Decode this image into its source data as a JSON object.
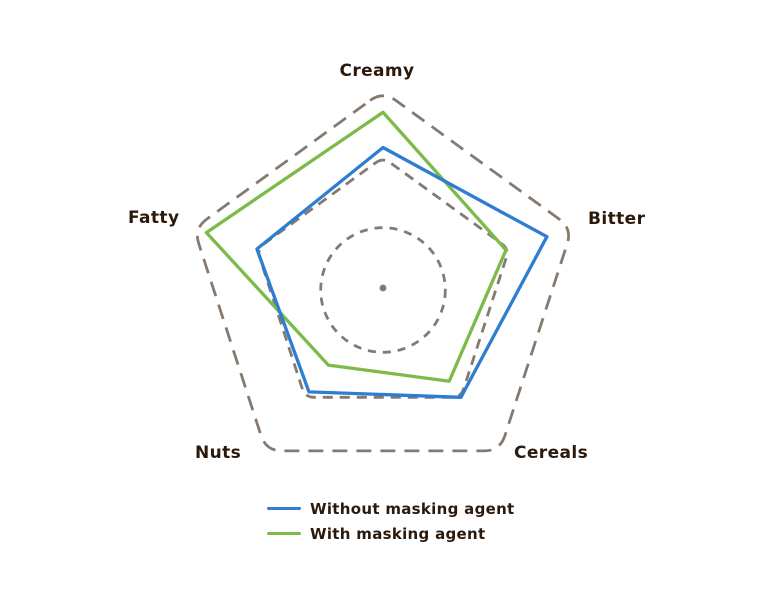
{
  "chart_data": {
    "type": "radar",
    "title": "",
    "categories": [
      "Creamy",
      "Bitter",
      "Cereals",
      "Nuts",
      "Fatty"
    ],
    "series": [
      {
        "name": "Without masking agent",
        "color": "#2e7dd1",
        "values": [
          2.15,
          2.6,
          2.0,
          1.9,
          2.0
        ]
      },
      {
        "name": "With masking agent",
        "color": "#7cba49",
        "values": [
          2.68,
          1.95,
          1.7,
          1.4,
          2.8
        ]
      }
    ],
    "scale": {
      "min": 0,
      "max": 3,
      "rings": [
        1,
        2,
        3
      ]
    },
    "grid": {
      "color": "#867a70",
      "style": "dashed",
      "ring_shapes": [
        "circle",
        "pentagon",
        "pentagon"
      ],
      "center_dot": true
    },
    "legend": {
      "position": "bottom-center"
    },
    "text_color": "#2b190c"
  }
}
